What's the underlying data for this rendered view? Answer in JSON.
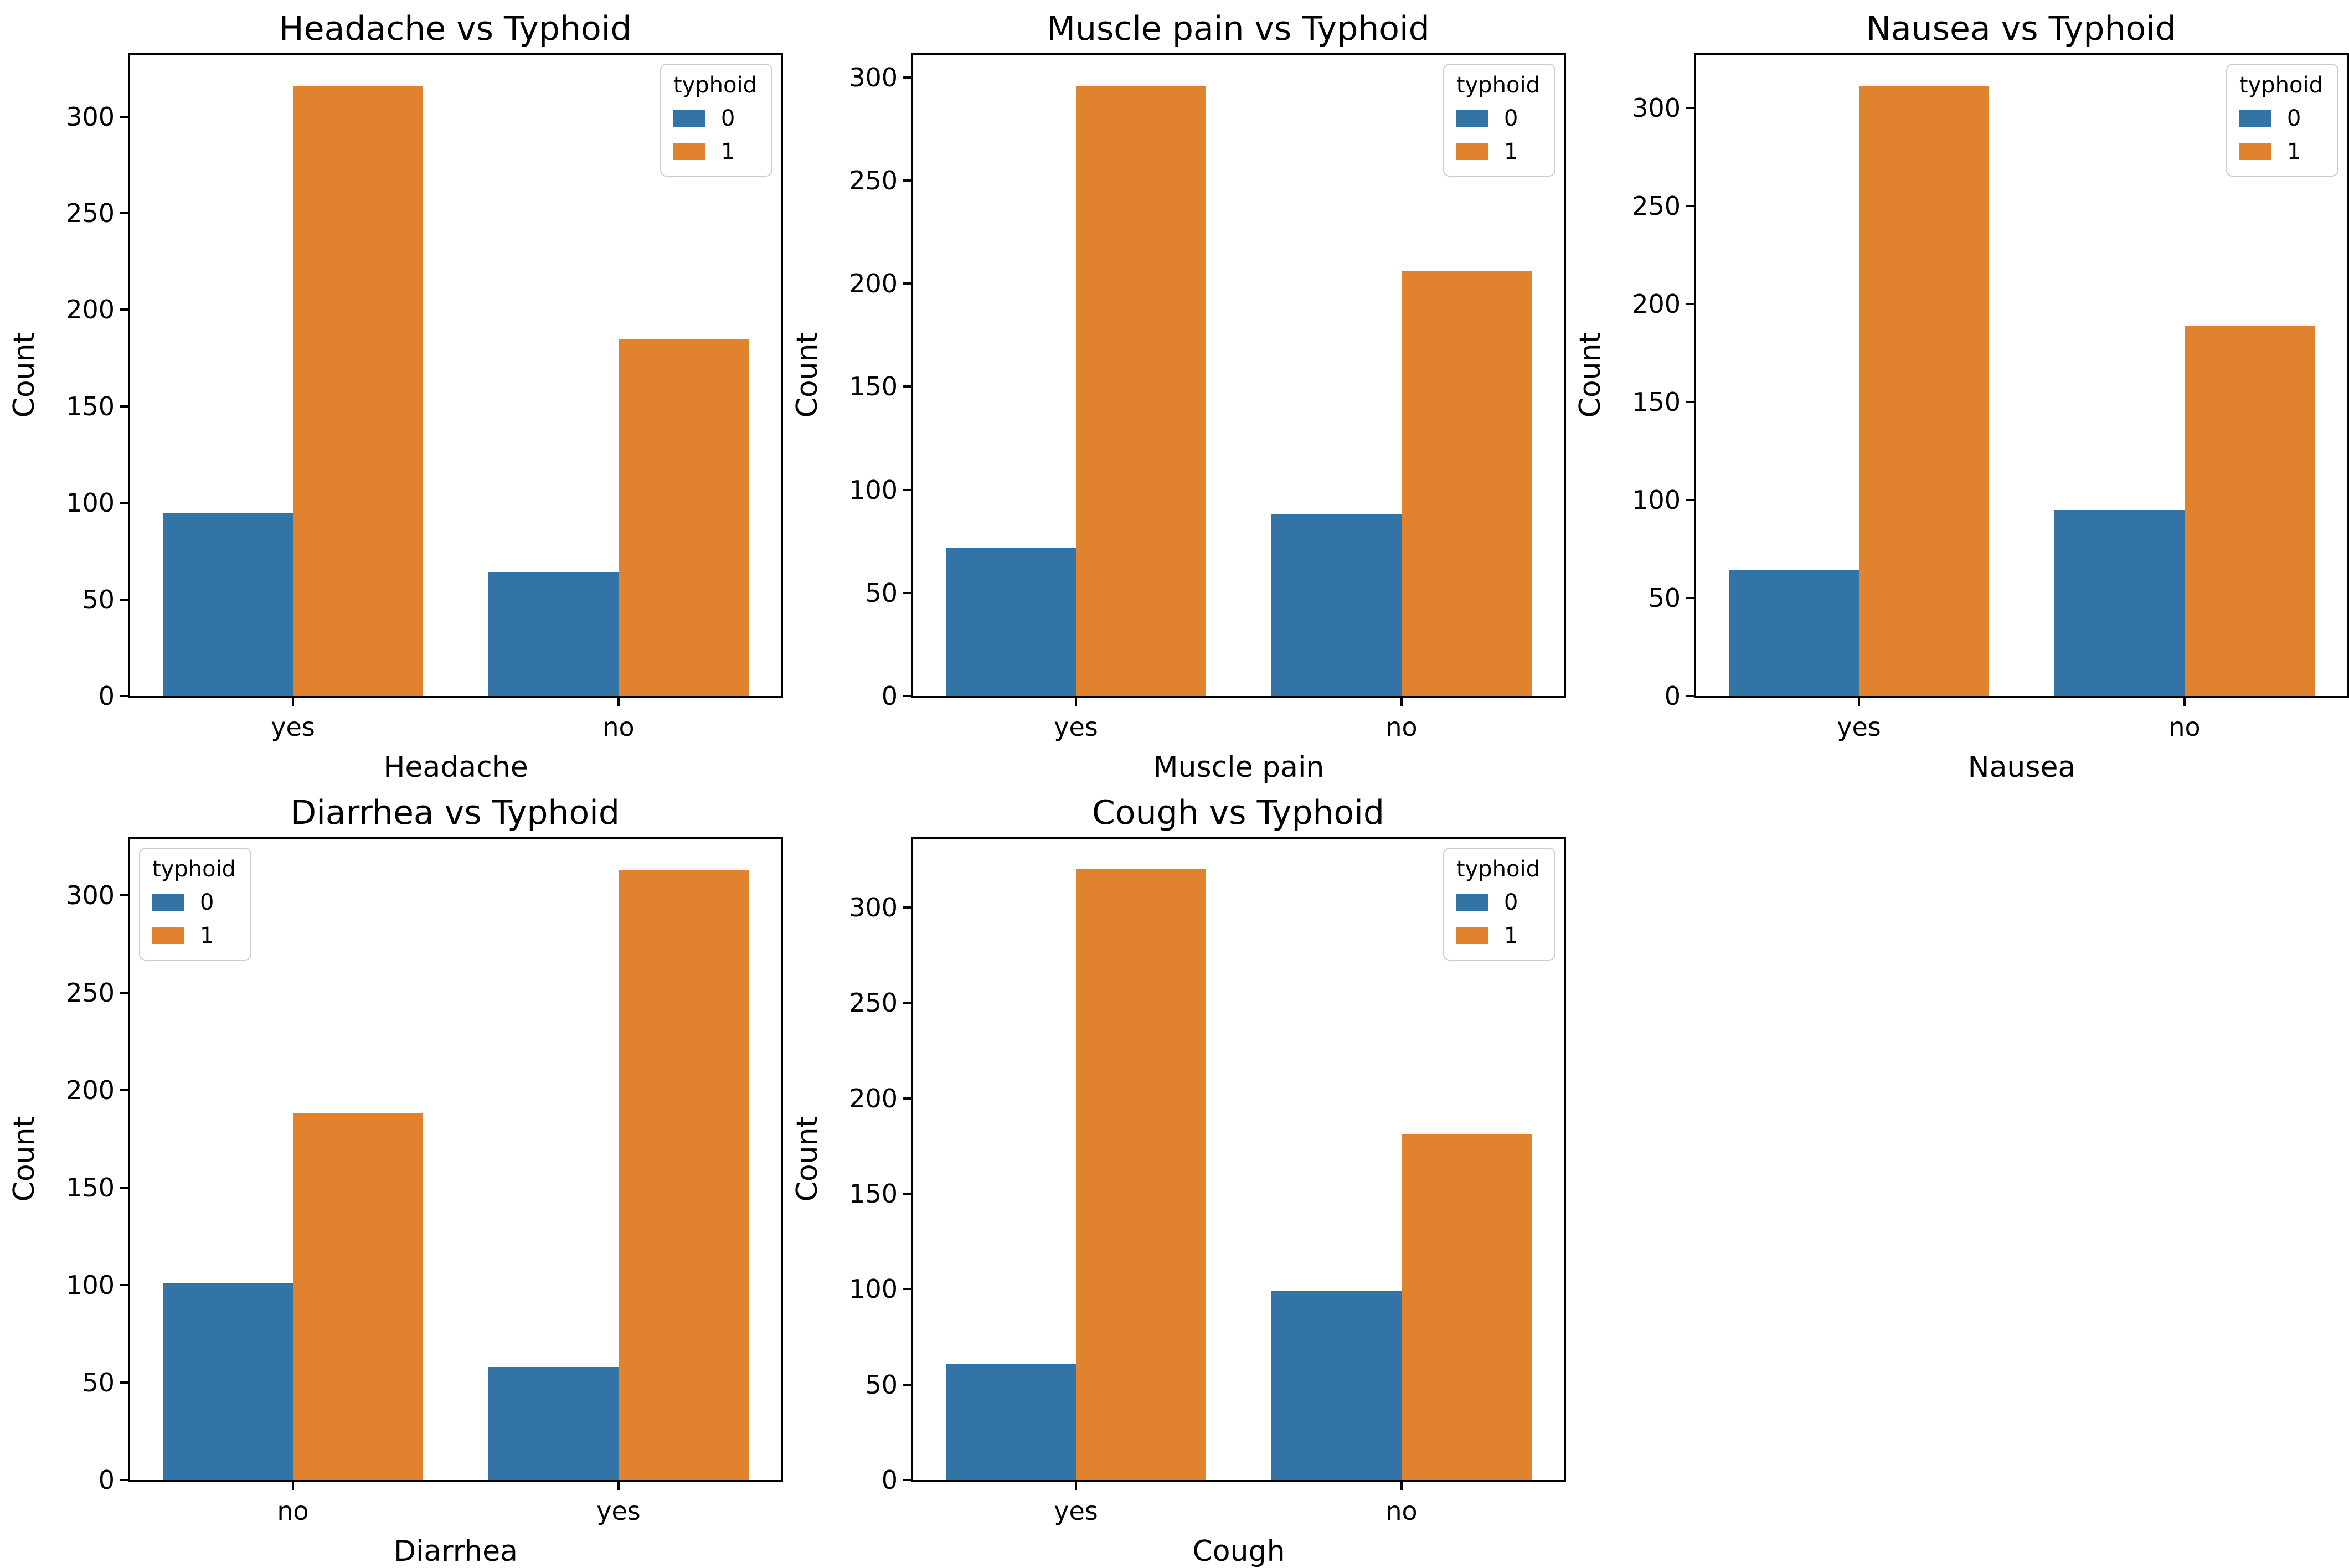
{
  "figure": {
    "background": "#ffffff",
    "axis_color": "#000000",
    "legend_border_color": "#cccccc",
    "palette": {
      "0": "#3274a5",
      "1": "#e0822e"
    },
    "grid_layout": {
      "rows": 2,
      "cols": 3,
      "empty_cells": 1
    }
  },
  "chart_data": [
    {
      "type": "bar",
      "title": "Headache vs Typhoid",
      "xlabel": "Headache",
      "ylabel": "Count",
      "categories": [
        "yes",
        "no"
      ],
      "series": [
        {
          "name": "0",
          "values": [
            95,
            64
          ]
        },
        {
          "name": "1",
          "values": [
            316,
            185
          ]
        }
      ],
      "legend_title": "typhoid",
      "legend_loc": "upper-right",
      "yticks": [
        0,
        50,
        100,
        150,
        200,
        250,
        300
      ],
      "ylim": [
        0,
        332
      ],
      "grid": false
    },
    {
      "type": "bar",
      "title": "Muscle pain vs Typhoid",
      "xlabel": "Muscle pain",
      "ylabel": "Count",
      "categories": [
        "yes",
        "no"
      ],
      "series": [
        {
          "name": "0",
          "values": [
            72,
            88
          ]
        },
        {
          "name": "1",
          "values": [
            296,
            206
          ]
        }
      ],
      "legend_title": "typhoid",
      "legend_loc": "upper-right",
      "yticks": [
        0,
        50,
        100,
        150,
        200,
        250,
        300
      ],
      "ylim": [
        0,
        311
      ],
      "grid": false
    },
    {
      "type": "bar",
      "title": "Nausea vs Typhoid",
      "xlabel": "Nausea",
      "ylabel": "Count",
      "categories": [
        "yes",
        "no"
      ],
      "series": [
        {
          "name": "0",
          "values": [
            64,
            95
          ]
        },
        {
          "name": "1",
          "values": [
            311,
            189
          ]
        }
      ],
      "legend_title": "typhoid",
      "legend_loc": "upper-right",
      "yticks": [
        0,
        50,
        100,
        150,
        200,
        250,
        300
      ],
      "ylim": [
        0,
        327
      ],
      "grid": false
    },
    {
      "type": "bar",
      "title": "Diarrhea vs Typhoid",
      "xlabel": "Diarrhea",
      "ylabel": "Count",
      "categories": [
        "no",
        "yes"
      ],
      "series": [
        {
          "name": "0",
          "values": [
            101,
            58
          ]
        },
        {
          "name": "1",
          "values": [
            188,
            313
          ]
        }
      ],
      "legend_title": "typhoid",
      "legend_loc": "upper-left",
      "yticks": [
        0,
        50,
        100,
        150,
        200,
        250,
        300
      ],
      "ylim": [
        0,
        329
      ],
      "grid": false
    },
    {
      "type": "bar",
      "title": "Cough vs Typhoid",
      "xlabel": "Cough",
      "ylabel": "Count",
      "categories": [
        "yes",
        "no"
      ],
      "series": [
        {
          "name": "0",
          "values": [
            61,
            99
          ]
        },
        {
          "name": "1",
          "values": [
            320,
            181
          ]
        }
      ],
      "legend_title": "typhoid",
      "legend_loc": "upper-right",
      "yticks": [
        0,
        50,
        100,
        150,
        200,
        250,
        300
      ],
      "ylim": [
        0,
        336
      ],
      "grid": false
    }
  ]
}
